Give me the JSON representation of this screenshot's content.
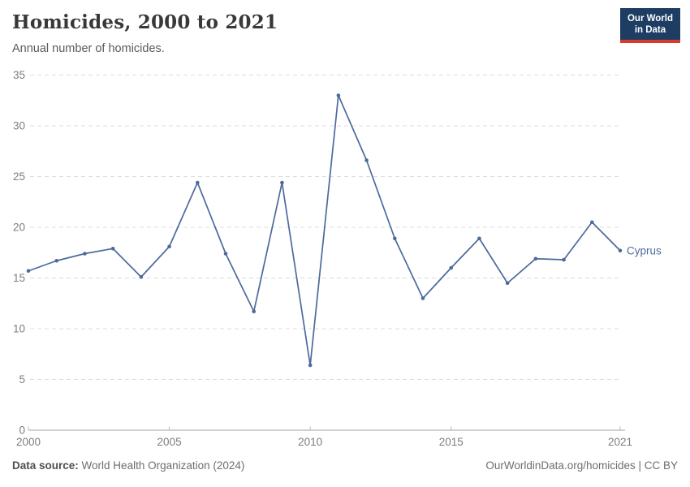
{
  "header": {
    "title": "Homicides, 2000 to 2021",
    "subtitle": "Annual number of homicides.",
    "logo_line1": "Our World",
    "logo_line2": "in Data"
  },
  "chart_data": {
    "type": "line",
    "title": "Homicides, 2000 to 2021",
    "subtitle": "Annual number of homicides.",
    "x": [
      2000,
      2001,
      2002,
      2003,
      2004,
      2005,
      2006,
      2007,
      2008,
      2009,
      2010,
      2011,
      2012,
      2013,
      2014,
      2015,
      2016,
      2017,
      2018,
      2019,
      2020,
      2021
    ],
    "series": [
      {
        "name": "Cyprus",
        "color": "#4c6a9c",
        "values": [
          15.7,
          16.7,
          17.4,
          17.9,
          15.1,
          18.1,
          24.4,
          17.4,
          11.7,
          24.4,
          6.4,
          33.0,
          26.6,
          18.9,
          13.0,
          16.0,
          18.9,
          14.5,
          16.9,
          16.8,
          20.5,
          17.7
        ]
      }
    ],
    "end_label": "Cyprus",
    "xlabel": "",
    "ylabel": "",
    "ylim": [
      0,
      35
    ],
    "yticks": [
      0,
      5,
      10,
      15,
      20,
      25,
      30,
      35
    ],
    "xtick_years": [
      2000,
      2005,
      2010,
      2015,
      2021
    ],
    "xtick_labels": [
      "2000",
      "2005",
      "2010",
      "2015",
      "2021"
    ],
    "grid": "horizontal dashed gridlines on",
    "legend_position": "end-of-line label"
  },
  "footer": {
    "source_label": "Data source:",
    "source_value": "World Health Organization (2024)",
    "right_text": "OurWorldinData.org/homicides | CC BY"
  },
  "colors": {
    "accent_line": "#4c6a9c",
    "logo_navy": "#1d3d63",
    "logo_red": "#d93a2e",
    "grid": "#dcdcdc",
    "axis": "#a3a3a3",
    "tick": "#b8b8b8",
    "text_muted": "#7d7d7d"
  }
}
